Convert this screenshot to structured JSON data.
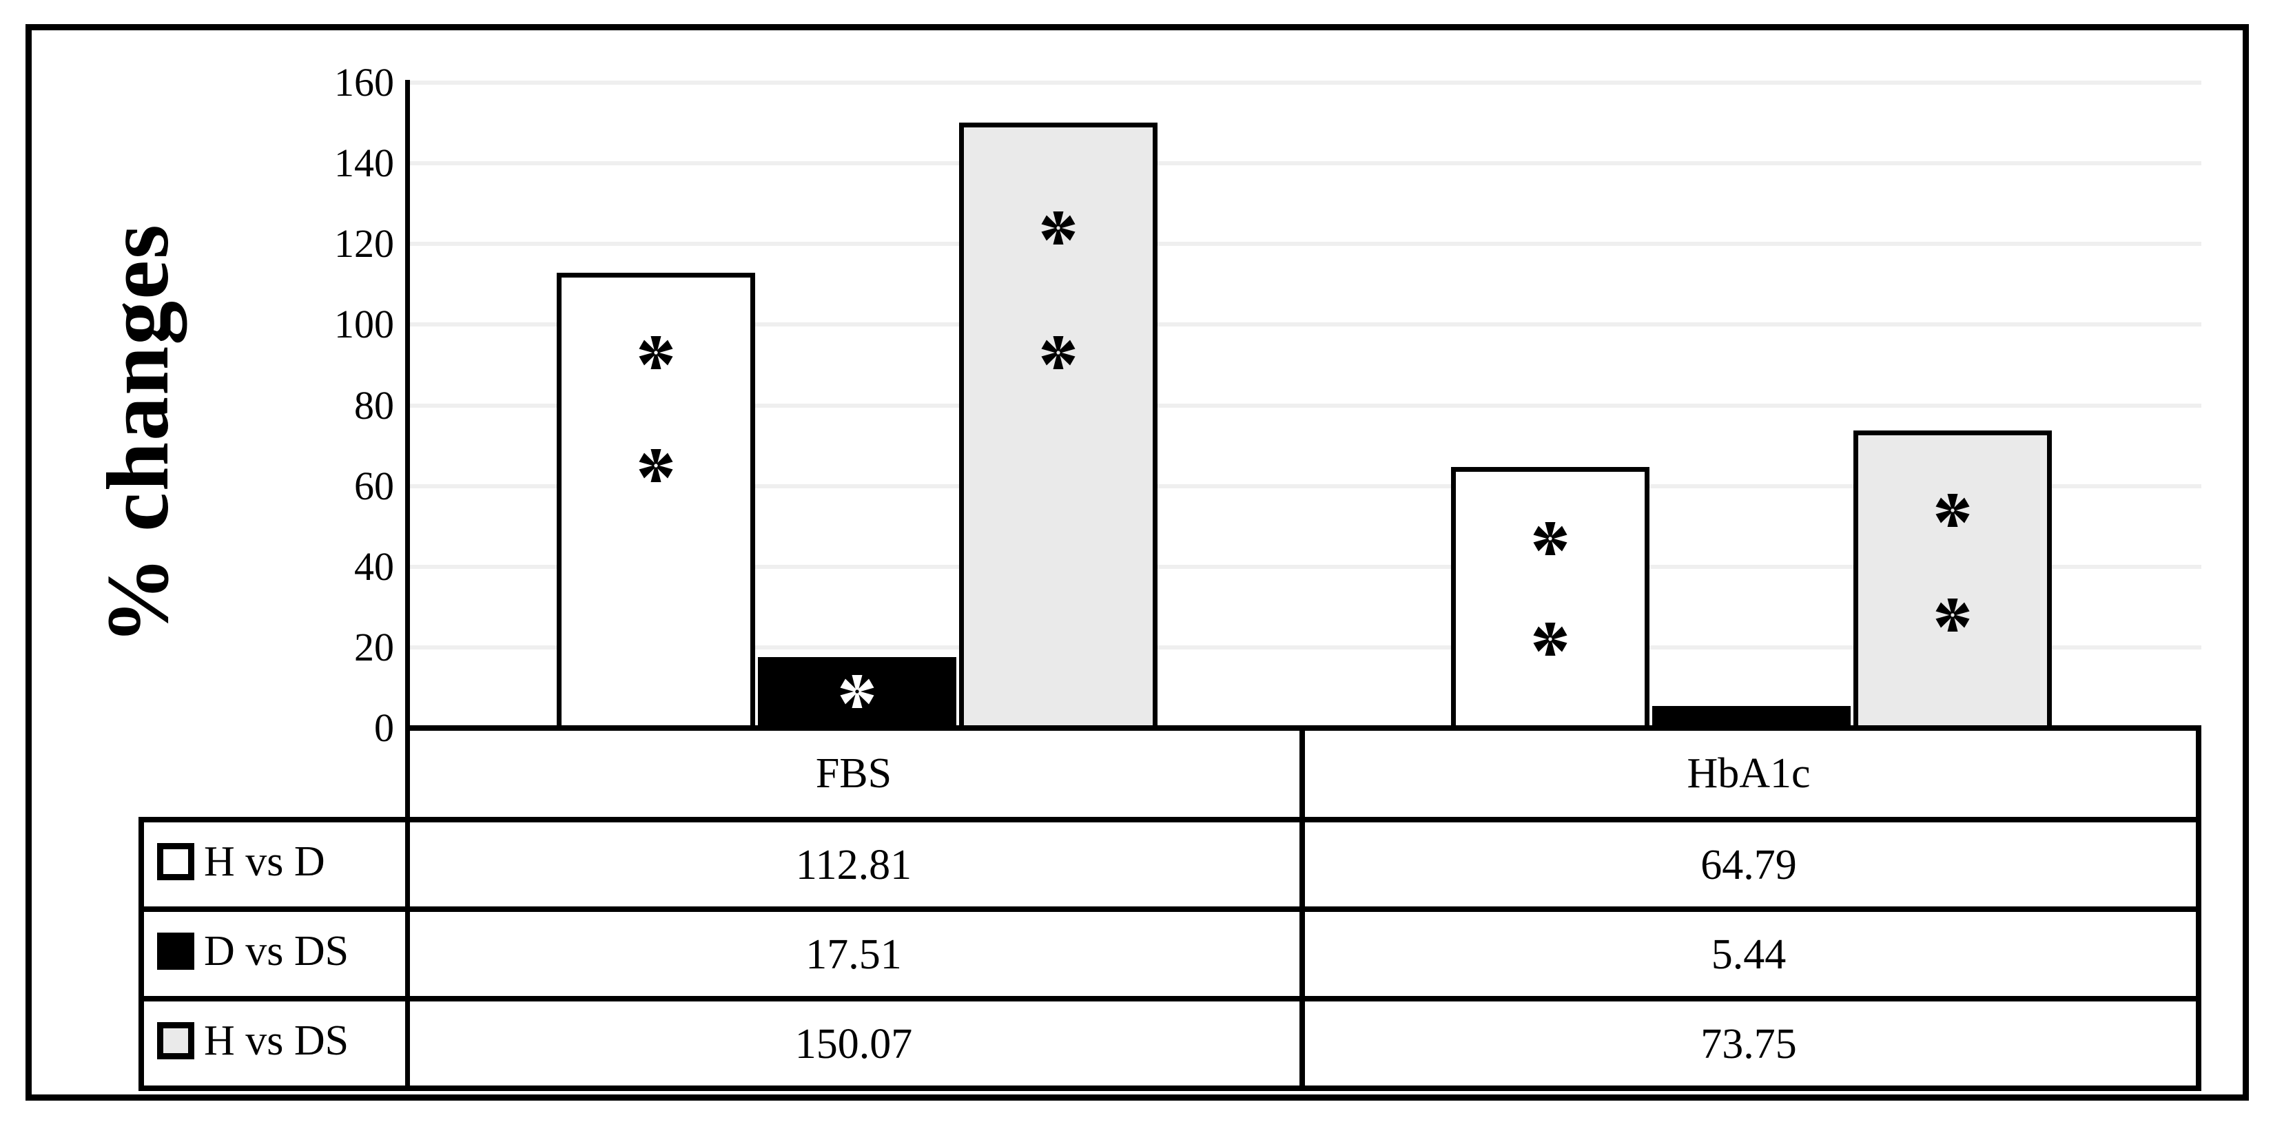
{
  "figure": {
    "background": "#ffffff",
    "border_color": "#000000"
  },
  "chart_data": {
    "type": "bar",
    "title": "",
    "xlabel": "",
    "ylabel": "% changes",
    "ylim": [
      0,
      160
    ],
    "yticks": [
      0,
      20,
      40,
      60,
      80,
      100,
      120,
      140,
      160
    ],
    "grid": true,
    "gridline_color": "#efefef",
    "axis_color": "#000000",
    "legend_position": "data-table-left",
    "categories": [
      "FBS",
      "HbA1c"
    ],
    "series": [
      {
        "name": "H vs D",
        "fill": "#ffffff",
        "border": "#000000",
        "values": [
          112.81,
          64.79
        ]
      },
      {
        "name": "D vs DS",
        "fill": "#000000",
        "border": "#000000",
        "values": [
          17.51,
          5.44
        ]
      },
      {
        "name": "H vs DS",
        "fill": "#eaeaea",
        "border": "#000000",
        "values": [
          150.07,
          73.75
        ]
      }
    ],
    "annotations": {
      "symbol": "*",
      "marks": [
        {
          "series": 0,
          "category": 0,
          "color": "#000000",
          "y_values": [
            93,
            65
          ]
        },
        {
          "series": 0,
          "category": 1,
          "color": "#000000",
          "y_values": [
            47,
            22
          ]
        },
        {
          "series": 1,
          "category": 0,
          "color": "#ffffff",
          "y_values": [
            9
          ]
        },
        {
          "series": 2,
          "category": 0,
          "color": "#000000",
          "y_values": [
            124,
            93
          ]
        },
        {
          "series": 2,
          "category": 1,
          "color": "#000000",
          "y_values": [
            54,
            28
          ]
        }
      ]
    }
  }
}
